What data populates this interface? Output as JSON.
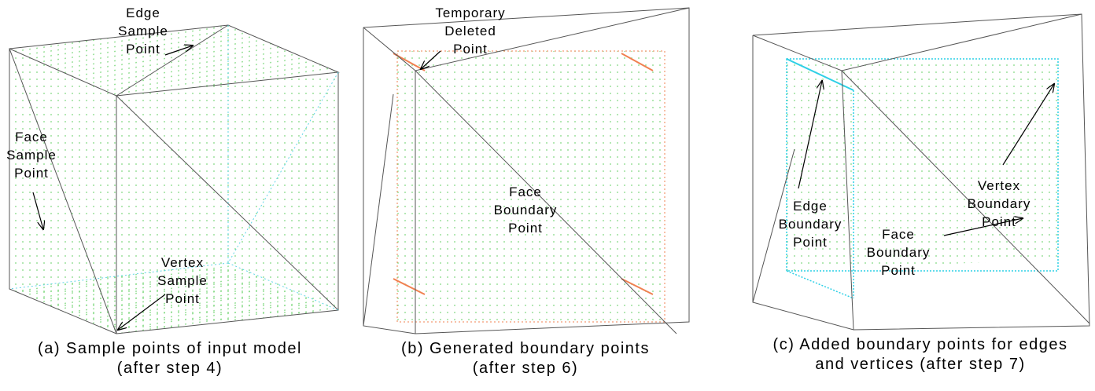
{
  "panels": [
    {
      "labels": [
        [
          "Edge",
          "Sample",
          "Point"
        ],
        [
          "Face",
          "Sample",
          "Point"
        ],
        [
          "Vertex",
          "Sample",
          "Point"
        ]
      ],
      "caption": [
        "(a) Sample points of input model",
        "(after step 4)"
      ]
    },
    {
      "labels": [
        [
          "Temporary",
          "Deleted",
          "Point"
        ],
        [
          "Face",
          "Boundary",
          "Point"
        ]
      ],
      "caption": [
        "(b) Generated boundary points",
        "(after step 6)"
      ]
    },
    {
      "labels": [
        [
          "Edge",
          "Boundary",
          "Point"
        ],
        [
          "Vertex",
          "Boundary",
          "Point"
        ],
        [
          "Face",
          "Boundary",
          "Point"
        ]
      ],
      "caption": [
        "(c) Added boundary points for edges",
        "and vertices (after step 7)"
      ]
    }
  ]
}
